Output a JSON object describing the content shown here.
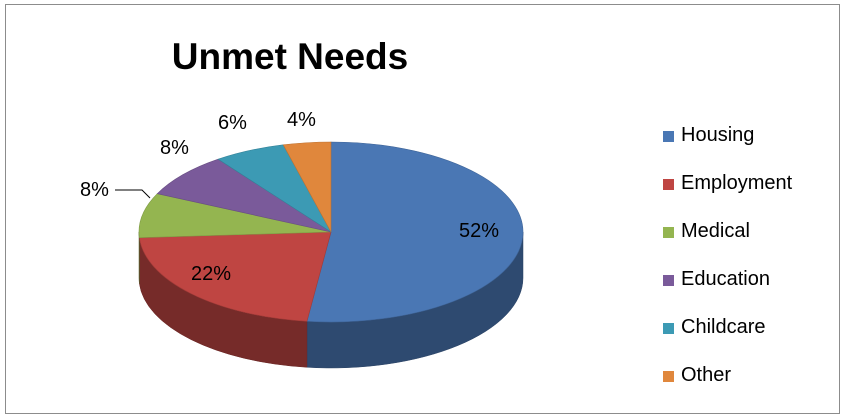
{
  "chart_data": {
    "type": "pie",
    "title": "Unmet Needs",
    "categories": [
      "Housing",
      "Employment",
      "Medical",
      "Education",
      "Childcare",
      "Other"
    ],
    "values": [
      52,
      22,
      8,
      8,
      6,
      4
    ],
    "data_labels": [
      "52%",
      "22%",
      "8%",
      "8%",
      "6%",
      "4%"
    ],
    "colors": [
      "#4a77b4",
      "#bf4542",
      "#94b550",
      "#7a5a9a",
      "#3c9ab4",
      "#e0873c"
    ],
    "legend_position": "right",
    "style": "3d"
  }
}
